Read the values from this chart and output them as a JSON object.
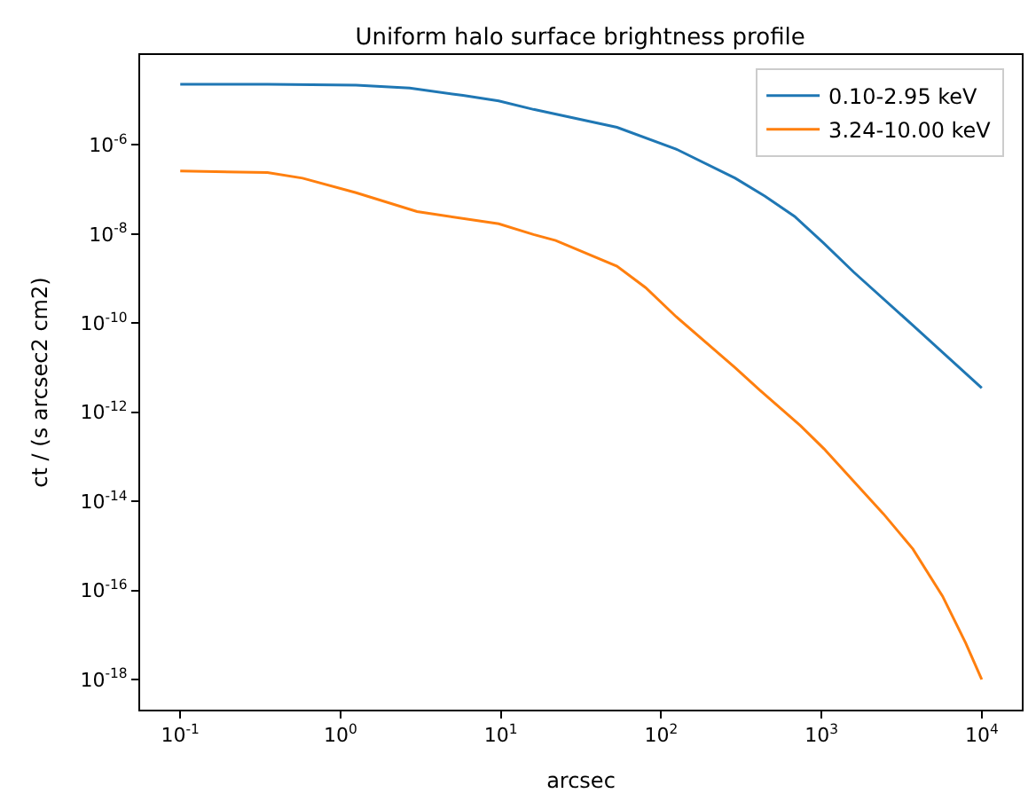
{
  "chart_data": {
    "type": "line",
    "title": "Uniform halo surface brightness profile",
    "xlabel": "arcsec",
    "ylabel": "ct / (s arcsec2 cm2)",
    "log": "xy",
    "legend": "top right",
    "marker": "none",
    "line_style": "solid",
    "xlim": [
      0.0562,
      17783
    ],
    "ylim": [
      2.1e-19,
      0.000105
    ],
    "xticks": [
      {
        "value": 0.1,
        "label": "10$^{-1}$"
      },
      {
        "value": 1,
        "label": "10$^{0}$"
      },
      {
        "value": 10,
        "label": "10$^{1}$"
      },
      {
        "value": 100,
        "label": "10$^{2}$"
      },
      {
        "value": 1000,
        "label": "10$^{3}$"
      },
      {
        "value": 10000,
        "label": "10$^{4}$"
      }
    ],
    "yticks": [
      {
        "value": 1e-06,
        "label": "10$^{-6}$"
      },
      {
        "value": 1e-08,
        "label": "10$^{-8}$"
      },
      {
        "value": 1e-10,
        "label": "10$^{-10}$"
      },
      {
        "value": 1e-12,
        "label": "10$^{-12}$"
      },
      {
        "value": 1e-14,
        "label": "10$^{-14}$"
      },
      {
        "value": 1e-16,
        "label": "10$^{-16}$"
      },
      {
        "value": 1e-18,
        "label": "10$^{-18}$"
      }
    ],
    "series": [
      {
        "name": "0.10-2.95 keV",
        "color": "#1f77b4",
        "x": [
          0.1,
          0.35,
          1.25,
          2.7,
          5.8,
          9.7,
          16,
          53,
          124,
          290,
          445,
          680,
          1030,
          1590,
          3700,
          10000
        ],
        "values": [
          2.3e-05,
          2.3e-05,
          2.2e-05,
          1.9e-05,
          1.3e-05,
          9.8e-06,
          6.3e-06,
          2.5e-06,
          8.1e-07,
          1.8e-07,
          7.1e-08,
          2.5e-08,
          6.3e-09,
          1.4e-09,
          9.1e-11,
          3.5e-12
        ]
      },
      {
        "name": "3.24-10.00 keV",
        "color": "#ff7f0e",
        "x": [
          0.1,
          0.35,
          0.58,
          1.25,
          3,
          9.7,
          16,
          22,
          53,
          80,
          124,
          290,
          410,
          740,
          1040,
          2440,
          3720,
          5700,
          7940,
          10000
        ],
        "values": [
          2.6e-07,
          2.4e-07,
          1.8e-07,
          8.5e-08,
          3.2e-08,
          1.7e-08,
          9.8e-09,
          7.2e-09,
          1.9e-09,
          6.3e-10,
          1.4e-10,
          1e-11,
          3.2e-12,
          5e-13,
          1.5e-13,
          5.2e-15,
          8.5e-16,
          7.4e-17,
          6.6e-18,
          1e-18
        ]
      }
    ]
  }
}
